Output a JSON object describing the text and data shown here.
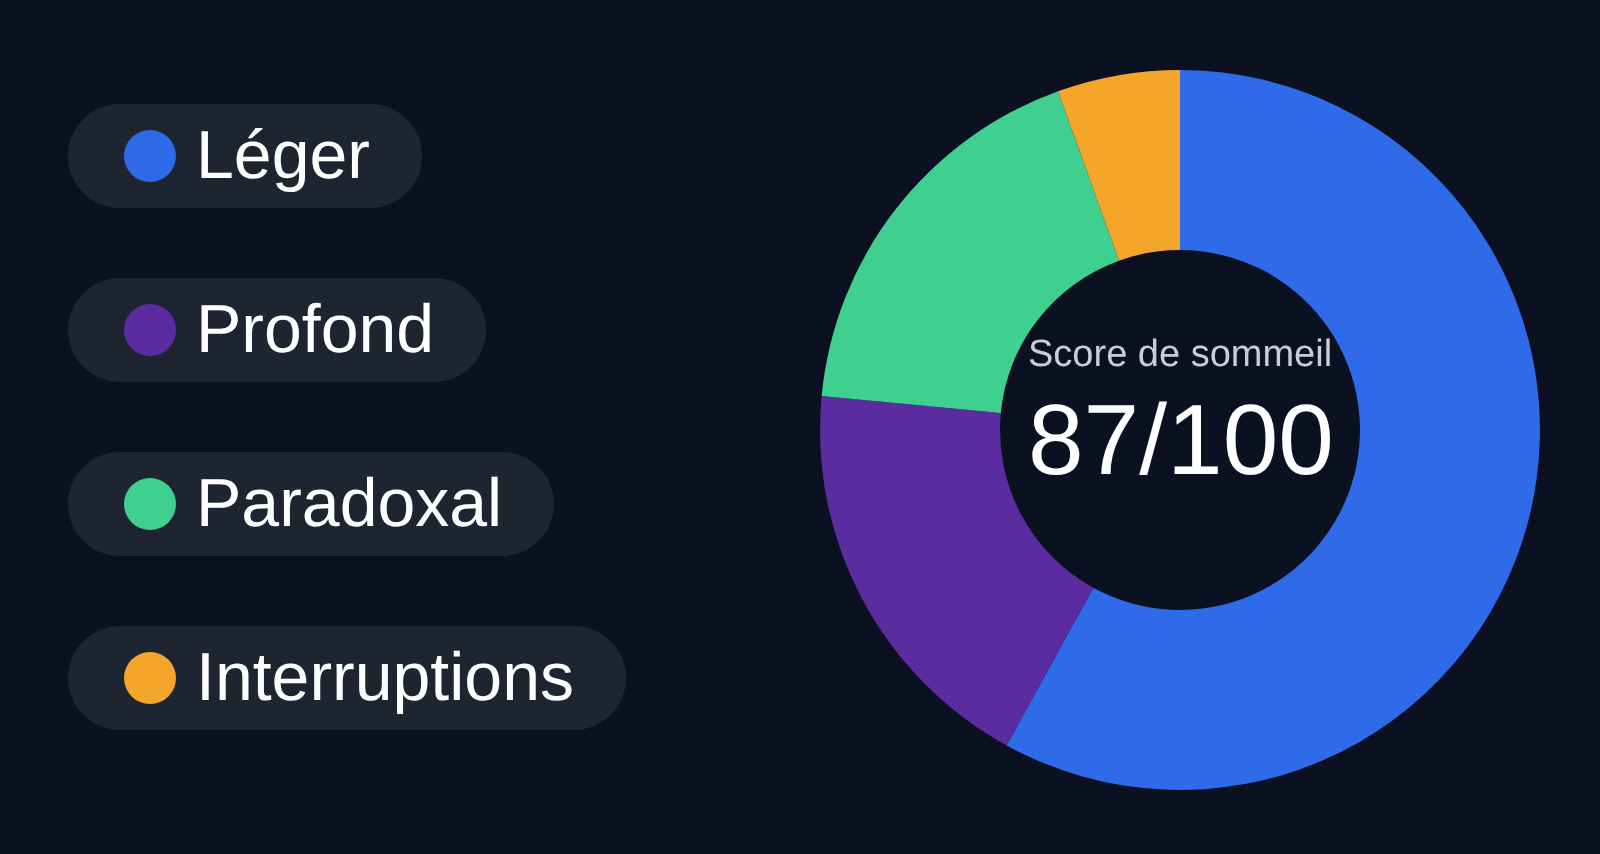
{
  "chart_data": {
    "type": "donut",
    "categories": [
      "Léger",
      "Profond",
      "Paradoxal",
      "Interruptions"
    ],
    "values": [
      58,
      18.5,
      18,
      5.5
    ],
    "colors": [
      "#2f6ae8",
      "#5b2ca0",
      "#3fcf8e",
      "#f4a62a"
    ],
    "annotations": [
      "Score de sommeil",
      "87/100"
    ],
    "legend": "left"
  }
}
